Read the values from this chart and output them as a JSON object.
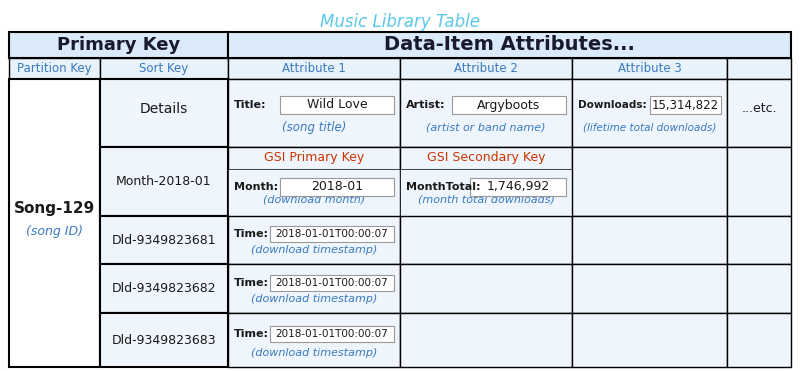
{
  "title": "Music Library Table",
  "title_color": "#5bc8e8",
  "header1_text": "Primary Key",
  "header2_text": "Data-Item Attributes...",
  "col_headers": [
    "Partition Key",
    "Sort Key",
    "Attribute 1",
    "Attribute 2",
    "Attribute 3",
    ""
  ],
  "partition_key_val": "Song-129",
  "partition_key_sub": "(song ID)",
  "bg_header_top": "#daeaf8",
  "bg_col_header": "#e8f2fb",
  "bg_cell": "#eef5fc",
  "border_dark": "#000000",
  "border_light": "#888888",
  "text_dark": "#1a1a1a",
  "text_blue": "#3a7abf",
  "text_red": "#cc3300",
  "input_box_bg": "#ffffff",
  "input_box_edge": "#aaaaaa",
  "fig_width": 8.0,
  "fig_height": 3.71,
  "title_fontsize": 12,
  "header_fontsize": 12,
  "col_header_fontsize": 8.5,
  "body_fontsize": 8.5,
  "small_fontsize": 7.5,
  "label_bold_fontsize": 8
}
